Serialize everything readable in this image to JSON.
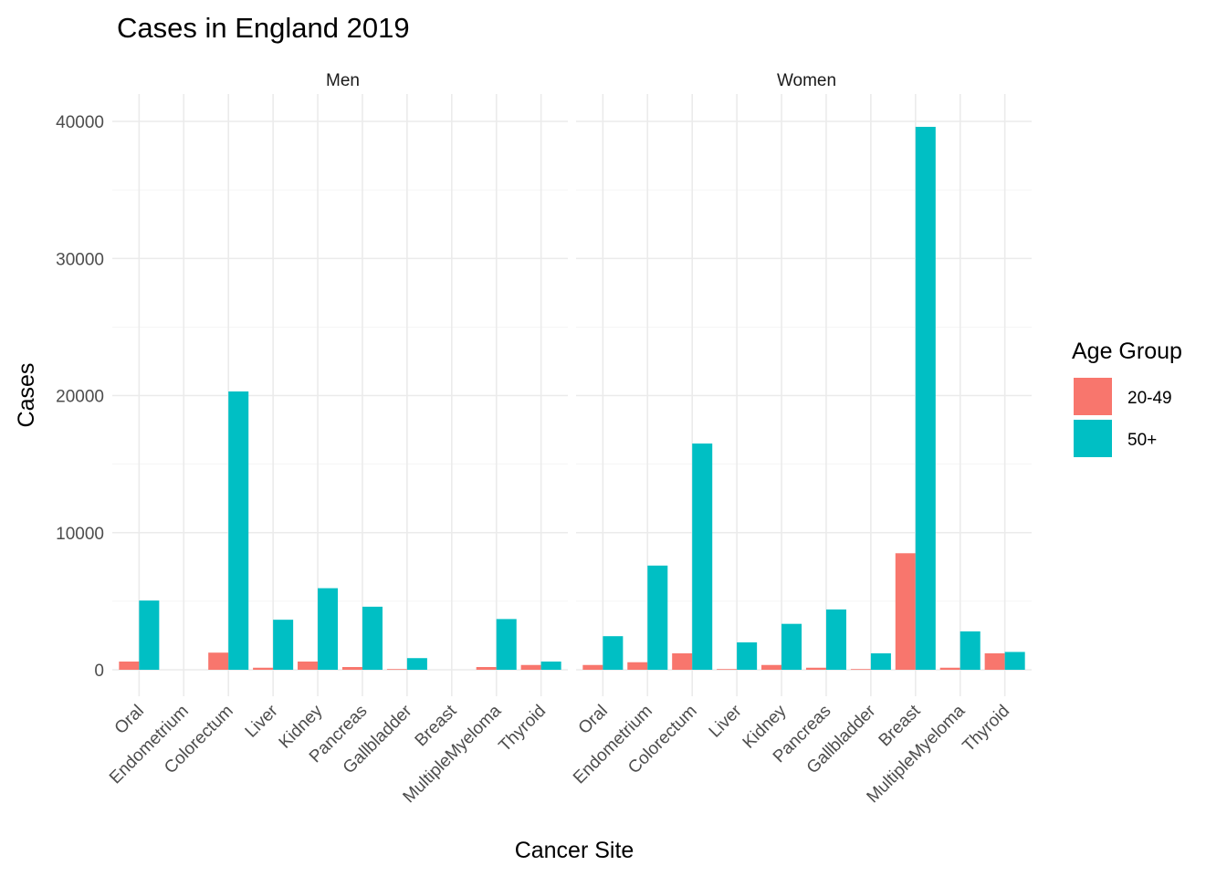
{
  "chart_data": {
    "type": "bar",
    "title": "Cases in England 2019",
    "xlabel": "Cancer Site",
    "ylabel": "Cases",
    "ylim": [
      0,
      40000
    ],
    "yticks": [
      "0",
      "10000",
      "20000",
      "30000",
      "40000"
    ],
    "grid": true,
    "legend": {
      "title": "Age Group",
      "placement": "right",
      "entries": [
        {
          "name": "20-49",
          "color": "#F8766D"
        },
        {
          "name": "50+",
          "color": "#00BFC4"
        }
      ]
    },
    "categories": [
      "Oral",
      "Endometrium",
      "Colorectum",
      "Liver",
      "Kidney",
      "Pancreas",
      "Gallbladder",
      "Breast",
      "MultipleMyeloma",
      "Thyroid"
    ],
    "facets": [
      {
        "name": "Men",
        "series": [
          {
            "name": "20-49",
            "values": [
              600,
              null,
              1250,
              150,
              600,
              200,
              50,
              null,
              200,
              350
            ]
          },
          {
            "name": "50+",
            "values": [
              5050,
              null,
              20300,
              3650,
              5950,
              4600,
              850,
              null,
              3700,
              600
            ]
          }
        ]
      },
      {
        "name": "Women",
        "series": [
          {
            "name": "20-49",
            "values": [
              350,
              550,
              1200,
              50,
              350,
              150,
              50,
              8500,
              150,
              1200
            ]
          },
          {
            "name": "50+",
            "values": [
              2450,
              7600,
              16500,
              2000,
              3350,
              4400,
              1200,
              39600,
              2800,
              1300
            ]
          }
        ]
      }
    ]
  }
}
